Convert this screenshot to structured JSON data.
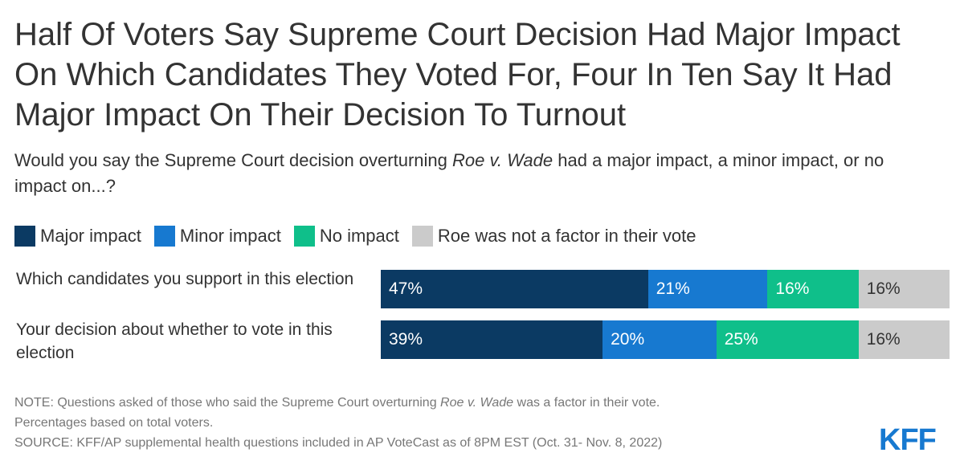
{
  "chart_data": {
    "type": "bar",
    "orientation": "horizontal",
    "stacked": true,
    "title": "Half Of Voters Say Supreme Court Decision Had Major Impact On Which Candidates They Voted For, Four In Ten Say It Had Major Impact On Their Decision To Turnout",
    "subtitle": {
      "before": "Would you say the Supreme Court decision overturning ",
      "emphasis": "Roe v. Wade",
      "after": " had a major impact, a minor impact, or no impact on...?"
    },
    "categories": [
      "Which candidates you support in this election",
      "Your decision about whether to vote in this election"
    ],
    "series": [
      {
        "name": "Major impact",
        "color": "#0b3a63",
        "text_color": "#ffffff",
        "values": [
          47,
          39
        ],
        "labels": [
          "47%",
          "39%"
        ]
      },
      {
        "name": "Minor impact",
        "color": "#1779d0",
        "text_color": "#ffffff",
        "values": [
          21,
          20
        ],
        "labels": [
          "21%",
          "20%"
        ]
      },
      {
        "name": "No impact",
        "color": "#0fbf8a",
        "text_color": "#ffffff",
        "values": [
          16,
          25
        ],
        "labels": [
          "16%",
          "25%"
        ]
      },
      {
        "name": "Roe was not a factor in their vote",
        "color": "#cbcbcb",
        "text_color": "#333333",
        "values": [
          16,
          16
        ],
        "labels": [
          "16%",
          "16%"
        ]
      }
    ],
    "xlim": [
      0,
      100
    ],
    "legend_position": "top-left"
  },
  "note": {
    "prefix": "NOTE: Questions asked of those who said the Supreme Court overturning ",
    "emphasis": "Roe v. Wade",
    "suffix": " was a factor in their vote.",
    "line2": "Percentages based on total voters."
  },
  "source": "SOURCE: KFF/AP supplemental health questions included in AP VoteCast as of 8PM EST (Oct. 31- Nov. 8, 2022)",
  "logo": "KFF"
}
